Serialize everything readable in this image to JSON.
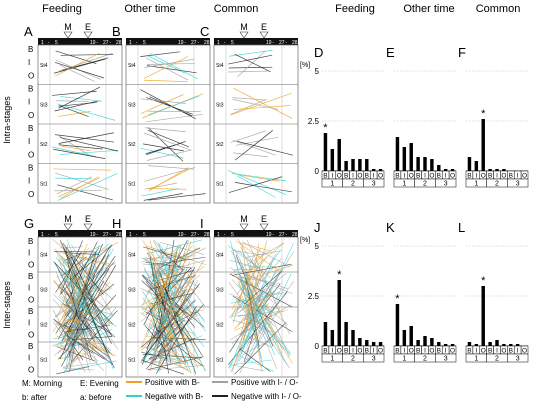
{
  "headers": {
    "left": [
      "Feeding",
      "Other time",
      "Common"
    ],
    "right": [
      "Feeding",
      "Other time",
      "Common"
    ]
  },
  "panel_letters": {
    "net_top": [
      "A",
      "B",
      "C"
    ],
    "bar_top": [
      "D",
      "E",
      "F"
    ],
    "net_bottom": [
      "G",
      "H",
      "I"
    ],
    "bar_bottom": [
      "J",
      "K",
      "L"
    ]
  },
  "row_labels": {
    "top": "Intra-stages",
    "bottom": "Inter-stages"
  },
  "stage_labels": [
    "St4",
    "St3",
    "St2",
    "St1"
  ],
  "layer_letters": [
    "B",
    "I",
    "O"
  ],
  "time_markers": {
    "morning": "M",
    "evening": "E"
  },
  "axis_ticks": {
    "left_group": [
      "1",
      "-",
      "5"
    ],
    "right_group": [
      "19",
      "-",
      "27",
      "-",
      "28"
    ]
  },
  "legend": {
    "notes": [
      "M: Morning",
      "E: Evening",
      "b: after",
      "a: before"
    ],
    "lines": [
      {
        "label": "Positive with B-",
        "color": "#f0a020"
      },
      {
        "label": "Negative with B-",
        "color": "#30d0d8"
      },
      {
        "label": "Positive with I- / O-",
        "color": "#a0a0a0"
      },
      {
        "label": "Negative with I- / O-",
        "color": "#202020"
      }
    ]
  },
  "colors": {
    "orange": "#f0a020",
    "cyan": "#30d0d8",
    "gray": "#a0a0a0",
    "black": "#202020"
  },
  "chart_data": [
    {
      "panel": "D",
      "type": "bar",
      "unit": "[%]",
      "ylim": [
        0,
        5
      ],
      "yticks": [
        "0",
        "2.5",
        "5"
      ],
      "categories": [
        "B",
        "I",
        "O",
        "B",
        "I",
        "O",
        "B",
        "I",
        "O"
      ],
      "groups": [
        "1",
        "2",
        "3"
      ],
      "values": [
        1.9,
        1.1,
        1.6,
        0.5,
        0.6,
        0.6,
        0.6,
        0.1,
        0.1
      ],
      "star_index": 0
    },
    {
      "panel": "E",
      "type": "bar",
      "unit": "[%]",
      "ylim": [
        0,
        5
      ],
      "yticks": [
        "0",
        "2.5",
        "5"
      ],
      "categories": [
        "B",
        "I",
        "O",
        "B",
        "I",
        "O",
        "B",
        "I",
        "O"
      ],
      "groups": [
        "1",
        "2",
        "3"
      ],
      "values": [
        1.7,
        1.2,
        1.4,
        0.7,
        0.7,
        0.6,
        0.3,
        0.1,
        0.1
      ],
      "star_index": null
    },
    {
      "panel": "F",
      "type": "bar",
      "unit": "[%]",
      "ylim": [
        0,
        5
      ],
      "yticks": [
        "0",
        "2.5",
        "5"
      ],
      "categories": [
        "B",
        "I",
        "O",
        "B",
        "I",
        "O",
        "B",
        "I",
        "O"
      ],
      "groups": [
        "1",
        "2",
        "3"
      ],
      "values": [
        0.7,
        0.5,
        2.6,
        0.1,
        0.1,
        0.1,
        0,
        0,
        0
      ],
      "star_index": 2
    },
    {
      "panel": "J",
      "type": "bar",
      "unit": "[%]",
      "ylim": [
        0,
        5
      ],
      "yticks": [
        "0",
        "2.5",
        "5"
      ],
      "categories": [
        "B",
        "I",
        "O",
        "B",
        "I",
        "O",
        "B",
        "I",
        "O"
      ],
      "groups": [
        "1",
        "2",
        "3"
      ],
      "values": [
        1.2,
        0.8,
        3.3,
        1.2,
        0.8,
        0.4,
        0.3,
        0.2,
        0.2
      ],
      "star_index": 2
    },
    {
      "panel": "K",
      "type": "bar",
      "unit": "[%]",
      "ylim": [
        0,
        5
      ],
      "yticks": [
        "0",
        "2.5",
        "5"
      ],
      "categories": [
        "B",
        "I",
        "O",
        "B",
        "I",
        "O",
        "B",
        "I",
        "O"
      ],
      "groups": [
        "1",
        "2",
        "3"
      ],
      "values": [
        2.1,
        0.8,
        1.0,
        0.3,
        0.5,
        0.4,
        0.2,
        0.1,
        0.1
      ],
      "star_index": 0
    },
    {
      "panel": "L",
      "type": "bar",
      "unit": "[%]",
      "ylim": [
        0,
        5
      ],
      "yticks": [
        "0",
        "2.5",
        "5"
      ],
      "categories": [
        "B",
        "I",
        "O",
        "B",
        "I",
        "O",
        "B",
        "I",
        "O"
      ],
      "groups": [
        "1",
        "2",
        "3"
      ],
      "values": [
        0.2,
        0.1,
        3.0,
        0.2,
        0.3,
        0.1,
        0.1,
        0.1,
        0
      ],
      "star_index": 2
    }
  ]
}
